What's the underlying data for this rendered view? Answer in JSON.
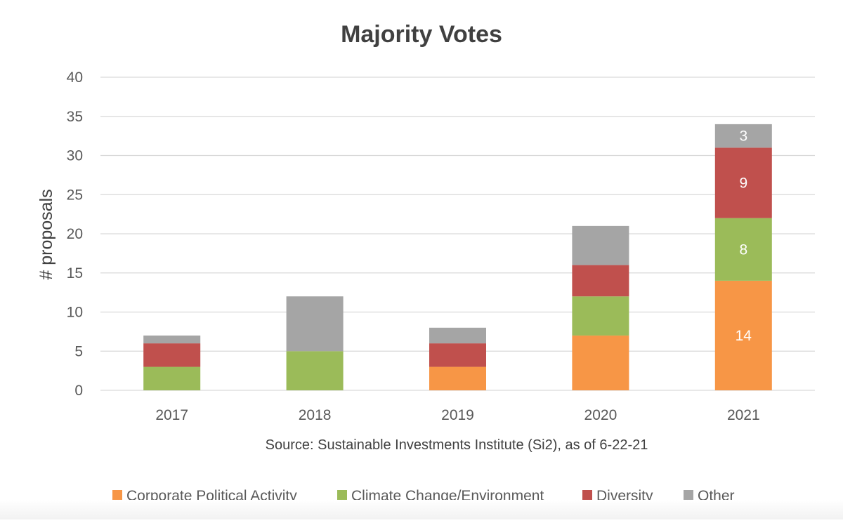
{
  "colors": {
    "corporate": "#F79646",
    "climate": "#9BBB59",
    "diversity": "#C0504D",
    "other": "#A5A5A5",
    "gridline": "#D9D9D9",
    "text": "#595959",
    "title": "#404040"
  },
  "chart_data": {
    "type": "bar",
    "stacked": true,
    "title": "Majority Votes",
    "xlabel": "",
    "ylabel": "# proposals",
    "source": "Source:  Sustainable Investments Institute (Si2), as of 6-22-21",
    "categories": [
      "2017",
      "2018",
      "2019",
      "2020",
      "2021"
    ],
    "ylim": [
      0,
      40
    ],
    "yticks": [
      0,
      5,
      10,
      15,
      20,
      25,
      30,
      35,
      40
    ],
    "grid": true,
    "legend_position": "bottom",
    "series": [
      {
        "name": "Corporate Political Activity",
        "key": "corporate",
        "values": [
          0,
          0,
          3,
          7,
          14
        ]
      },
      {
        "name": "Climate Change/Environment",
        "key": "climate",
        "values": [
          3,
          5,
          0,
          5,
          8
        ]
      },
      {
        "name": "Diversity",
        "key": "diversity",
        "values": [
          3,
          0,
          3,
          4,
          9
        ]
      },
      {
        "name": "Other",
        "key": "other",
        "values": [
          1,
          7,
          2,
          5,
          3
        ]
      }
    ],
    "data_labels": [
      {
        "category": "2021",
        "series": "Corporate Political Activity",
        "text": "14"
      },
      {
        "category": "2021",
        "series": "Climate Change/Environment",
        "text": "8"
      },
      {
        "category": "2021",
        "series": "Diversity",
        "text": "9"
      },
      {
        "category": "2021",
        "series": "Other",
        "text": "3"
      }
    ]
  }
}
